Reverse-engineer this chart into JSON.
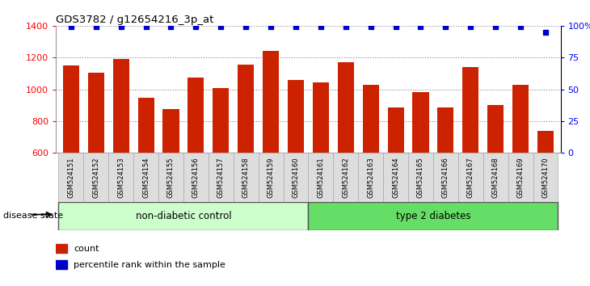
{
  "title": "GDS3782 / g12654216_3p_at",
  "samples": [
    "GSM524151",
    "GSM524152",
    "GSM524153",
    "GSM524154",
    "GSM524155",
    "GSM524156",
    "GSM524157",
    "GSM524158",
    "GSM524159",
    "GSM524160",
    "GSM524161",
    "GSM524162",
    "GSM524163",
    "GSM524164",
    "GSM524165",
    "GSM524166",
    "GSM524167",
    "GSM524168",
    "GSM524169",
    "GSM524170"
  ],
  "counts": [
    1150,
    1105,
    1190,
    945,
    875,
    1075,
    1010,
    1155,
    1240,
    1060,
    1045,
    1170,
    1030,
    885,
    985,
    885,
    1140,
    900,
    1030,
    740
  ],
  "percentiles": [
    99,
    99,
    99,
    99,
    99,
    99,
    99,
    99,
    99,
    99,
    99,
    99,
    99,
    99,
    99,
    99,
    99,
    99,
    99,
    95
  ],
  "group_labels": [
    "non-diabetic control",
    "type 2 diabetes"
  ],
  "group_splits": [
    10,
    10
  ],
  "group_colors": [
    "#ccffcc",
    "#66dd66"
  ],
  "bar_color": "#cc2200",
  "dot_color": "#0000cc",
  "ylim": [
    600,
    1400
  ],
  "yticks_left": [
    600,
    800,
    1000,
    1200,
    1400
  ],
  "yticks_right": [
    0,
    25,
    50,
    75,
    100
  ],
  "right_ylim": [
    0,
    100
  ],
  "legend_count_label": "count",
  "legend_pct_label": "percentile rank within the sample",
  "disease_state_label": "disease state"
}
